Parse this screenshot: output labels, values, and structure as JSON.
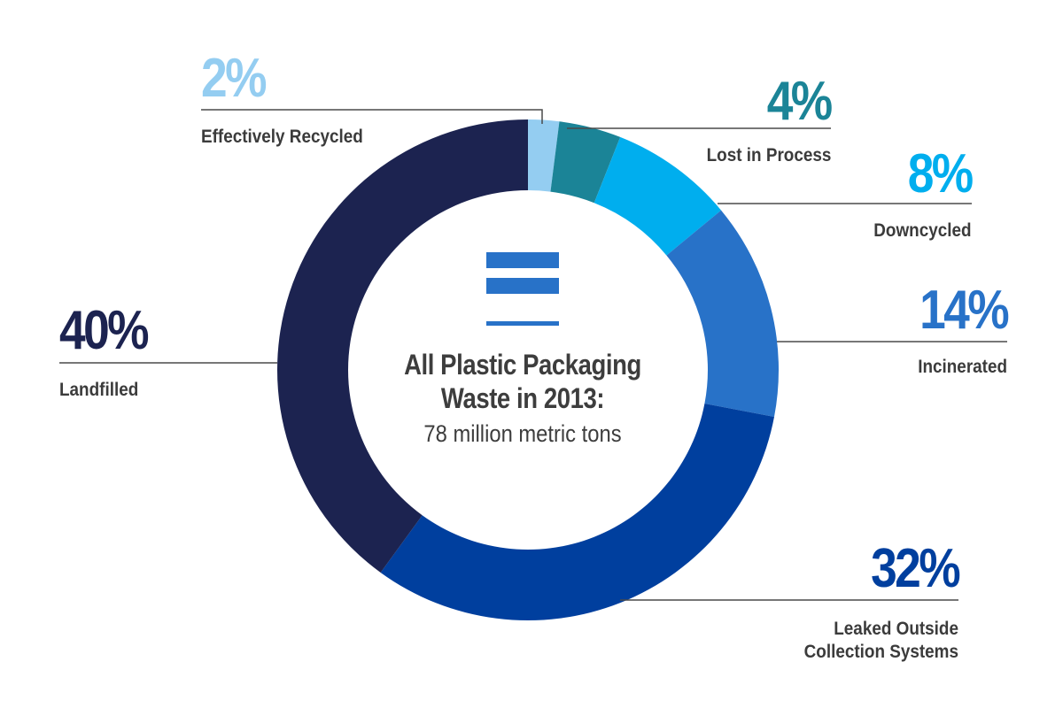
{
  "chart_data": {
    "type": "pie",
    "variant": "donut",
    "center_title": "All Plastic Packaging Waste in 2013:",
    "center_subtitle": "78 million metric tons",
    "center_icon": "equals-stripes-icon",
    "slices": [
      {
        "label": "Effectively Recycled",
        "value": 2,
        "display": "2%",
        "color": "#94cdf1"
      },
      {
        "label": "Lost in Process",
        "value": 4,
        "display": "4%",
        "color": "#1b8497"
      },
      {
        "label": "Downcycled",
        "value": 8,
        "display": "8%",
        "color": "#00aeee"
      },
      {
        "label": "Incinerated",
        "value": 14,
        "display": "14%",
        "color": "#2872c8"
      },
      {
        "label": "Leaked Outside Collection Systems",
        "value": 32,
        "display": "32%",
        "color": "#003f9e"
      },
      {
        "label": "Landfilled",
        "value": 40,
        "display": "40%",
        "color": "#1c2350"
      }
    ],
    "leader_line_color": "#4a4a4a"
  }
}
